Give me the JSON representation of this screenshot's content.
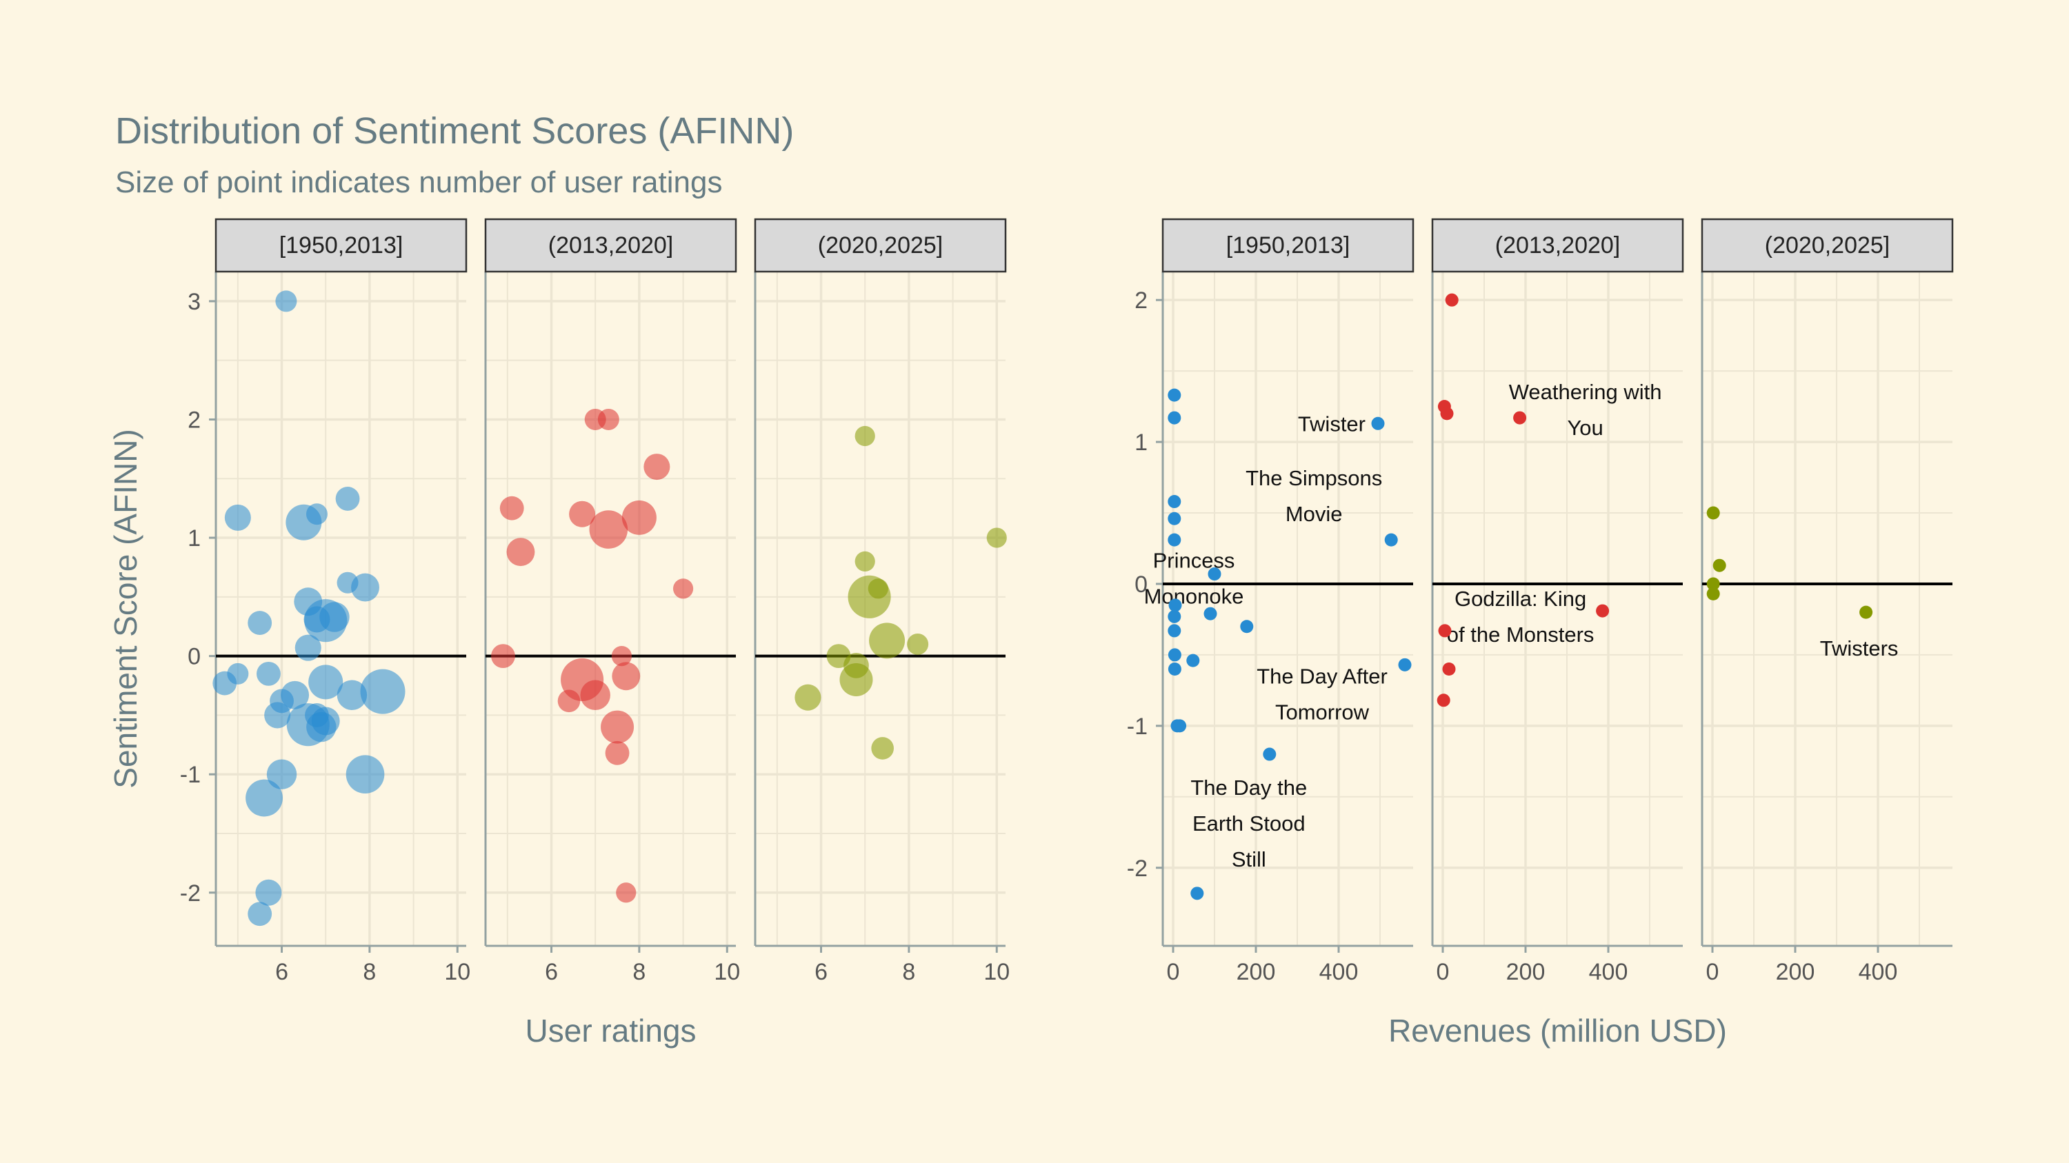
{
  "colors": {
    "background": "#fdf6e3",
    "panel_grid": "#ece5d2",
    "strip_fill": "#d9d9d9",
    "period_1": "#268bd2",
    "period_2": "#dc322f",
    "period_3": "#859900"
  },
  "chart_data": {
    "title": "Distribution of Sentiment Scores (AFINN)",
    "subtitle": "Size of point indicates number of user ratings",
    "ylabel": "Sentiment Score (AFINN)",
    "facets": [
      "[1950,2013]",
      "(2013,2020]",
      "(2020,2025]"
    ],
    "charts": [
      {
        "type": "scatter",
        "xlabel": "User ratings",
        "xlim": [
          4.5,
          10.2
        ],
        "ylim": [
          -2.45,
          3.25
        ],
        "xticks": [
          6,
          8,
          10
        ],
        "yticks": [
          3,
          2,
          1,
          0,
          -1,
          -2
        ],
        "reference_line_y": 0,
        "point_alpha": 0.55,
        "size_legend": "none",
        "panels": [
          {
            "facet": "[1950,2013]",
            "points": [
              {
                "x": 6.1,
                "y": 3.0,
                "n": 1
              },
              {
                "x": 5.0,
                "y": 1.17,
                "n": 2
              },
              {
                "x": 6.5,
                "y": 1.13,
                "n": 5
              },
              {
                "x": 7.5,
                "y": 1.33,
                "n": 1.5
              },
              {
                "x": 6.8,
                "y": 1.2,
                "n": 1
              },
              {
                "x": 7.5,
                "y": 0.62,
                "n": 1
              },
              {
                "x": 7.9,
                "y": 0.58,
                "n": 2.5
              },
              {
                "x": 6.6,
                "y": 0.46,
                "n": 2.5
              },
              {
                "x": 6.8,
                "y": 0.31,
                "n": 2
              },
              {
                "x": 7.0,
                "y": 0.3,
                "n": 8
              },
              {
                "x": 7.2,
                "y": 0.33,
                "n": 3
              },
              {
                "x": 5.5,
                "y": 0.28,
                "n": 1.5
              },
              {
                "x": 6.6,
                "y": 0.07,
                "n": 2
              },
              {
                "x": 5.0,
                "y": -0.15,
                "n": 1
              },
              {
                "x": 5.7,
                "y": -0.15,
                "n": 1.5
              },
              {
                "x": 4.7,
                "y": -0.23,
                "n": 1.5
              },
              {
                "x": 7.0,
                "y": -0.22,
                "n": 4.5
              },
              {
                "x": 8.3,
                "y": -0.3,
                "n": 9
              },
              {
                "x": 6.3,
                "y": -0.33,
                "n": 2.5
              },
              {
                "x": 6.0,
                "y": -0.38,
                "n": 1.5
              },
              {
                "x": 7.6,
                "y": -0.33,
                "n": 3
              },
              {
                "x": 5.9,
                "y": -0.5,
                "n": 2
              },
              {
                "x": 6.8,
                "y": -0.5,
                "n": 1.5
              },
              {
                "x": 7.0,
                "y": -0.55,
                "n": 2.5
              },
              {
                "x": 6.6,
                "y": -0.58,
                "n": 8
              },
              {
                "x": 6.9,
                "y": -0.6,
                "n": 3
              },
              {
                "x": 6.0,
                "y": -1.0,
                "n": 3
              },
              {
                "x": 7.9,
                "y": -1.0,
                "n": 6
              },
              {
                "x": 5.6,
                "y": -1.2,
                "n": 5.5
              },
              {
                "x": 5.7,
                "y": -2.0,
                "n": 2
              },
              {
                "x": 5.5,
                "y": -2.18,
                "n": 1.5
              }
            ]
          },
          {
            "facet": "(2013,2020]",
            "points": [
              {
                "x": 7.0,
                "y": 2.0,
                "n": 1
              },
              {
                "x": 7.3,
                "y": 2.0,
                "n": 1
              },
              {
                "x": 8.4,
                "y": 1.6,
                "n": 2
              },
              {
                "x": 5.1,
                "y": 1.25,
                "n": 1.5
              },
              {
                "x": 6.7,
                "y": 1.2,
                "n": 2
              },
              {
                "x": 8.0,
                "y": 1.17,
                "n": 4.5
              },
              {
                "x": 7.3,
                "y": 1.07,
                "n": 6
              },
              {
                "x": 5.3,
                "y": 0.88,
                "n": 2.5
              },
              {
                "x": 9.0,
                "y": 0.57,
                "n": 0.8
              },
              {
                "x": 4.9,
                "y": 0.0,
                "n": 1.5
              },
              {
                "x": 7.6,
                "y": 0.0,
                "n": 0.8
              },
              {
                "x": 6.7,
                "y": -0.2,
                "n": 8
              },
              {
                "x": 7.0,
                "y": -0.33,
                "n": 3
              },
              {
                "x": 7.7,
                "y": -0.17,
                "n": 2.5
              },
              {
                "x": 6.4,
                "y": -0.38,
                "n": 1.2
              },
              {
                "x": 7.5,
                "y": -0.6,
                "n": 4
              },
              {
                "x": 7.5,
                "y": -0.82,
                "n": 1.5
              },
              {
                "x": 7.7,
                "y": -2.0,
                "n": 0.8
              }
            ]
          },
          {
            "facet": "(2020,2025]",
            "points": [
              {
                "x": 7.0,
                "y": 1.86,
                "n": 0.8
              },
              {
                "x": 10.0,
                "y": 1.0,
                "n": 0.8
              },
              {
                "x": 7.0,
                "y": 0.8,
                "n": 0.8
              },
              {
                "x": 7.3,
                "y": 0.57,
                "n": 0.8
              },
              {
                "x": 7.1,
                "y": 0.5,
                "n": 8
              },
              {
                "x": 7.5,
                "y": 0.13,
                "n": 5
              },
              {
                "x": 8.2,
                "y": 0.1,
                "n": 1
              },
              {
                "x": 6.4,
                "y": 0.0,
                "n": 1.5
              },
              {
                "x": 6.8,
                "y": -0.08,
                "n": 1.8
              },
              {
                "x": 6.8,
                "y": -0.2,
                "n": 4
              },
              {
                "x": 5.7,
                "y": -0.35,
                "n": 2
              },
              {
                "x": 7.4,
                "y": -0.78,
                "n": 1.2
              }
            ]
          }
        ]
      },
      {
        "type": "scatter",
        "xlabel": "Revenues (million USD)",
        "xlim": [
          -25,
          580
        ],
        "ylim": [
          -2.55,
          2.2
        ],
        "xticks": [
          0,
          200,
          400
        ],
        "yticks": [
          2,
          1,
          0,
          -1,
          -2
        ],
        "reference_line_y": 0,
        "panels": [
          {
            "facet": "[1950,2013]",
            "points": [
              {
                "x": 3,
                "y": 1.33
              },
              {
                "x": 3,
                "y": 1.17
              },
              {
                "x": 495,
                "y": 1.13,
                "label": "Twister"
              },
              {
                "x": 3,
                "y": 0.58
              },
              {
                "x": 3,
                "y": 0.46
              },
              {
                "x": 3,
                "y": 0.31
              },
              {
                "x": 527,
                "y": 0.31,
                "label": "The Simpsons Movie"
              },
              {
                "x": 100,
                "y": 0.07,
                "label": "Princess Mononoke"
              },
              {
                "x": 5,
                "y": -0.15
              },
              {
                "x": 3,
                "y": -0.23
              },
              {
                "x": 90,
                "y": -0.21
              },
              {
                "x": 178,
                "y": -0.3
              },
              {
                "x": 3,
                "y": -0.33
              },
              {
                "x": 4,
                "y": -0.5
              },
              {
                "x": 48,
                "y": -0.54
              },
              {
                "x": 560,
                "y": -0.57,
                "label": "The Day After Tomorrow"
              },
              {
                "x": 4,
                "y": -0.6
              },
              {
                "x": 10,
                "y": -1.0
              },
              {
                "x": 16,
                "y": -1.0
              },
              {
                "x": 233,
                "y": -1.2,
                "label": "The Day the Earth Stood Still"
              },
              {
                "x": 58,
                "y": -2.18
              }
            ]
          },
          {
            "facet": "(2013,2020]",
            "points": [
              {
                "x": 22,
                "y": 2.0
              },
              {
                "x": 4,
                "y": 1.25
              },
              {
                "x": 10,
                "y": 1.2
              },
              {
                "x": 186,
                "y": 1.17,
                "label": "Weathering with You"
              },
              {
                "x": 386,
                "y": -0.19,
                "label": "Godzilla: King of the Monsters"
              },
              {
                "x": 5,
                "y": -0.33
              },
              {
                "x": 15,
                "y": -0.6
              },
              {
                "x": 2,
                "y": -0.82
              }
            ]
          },
          {
            "facet": "(2020,2025]",
            "points": [
              {
                "x": 2,
                "y": 0.5
              },
              {
                "x": 17,
                "y": 0.13
              },
              {
                "x": 2,
                "y": 0.0
              },
              {
                "x": 2,
                "y": -0.07
              },
              {
                "x": 371,
                "y": -0.2,
                "label": "Twisters"
              }
            ]
          }
        ]
      }
    ]
  }
}
